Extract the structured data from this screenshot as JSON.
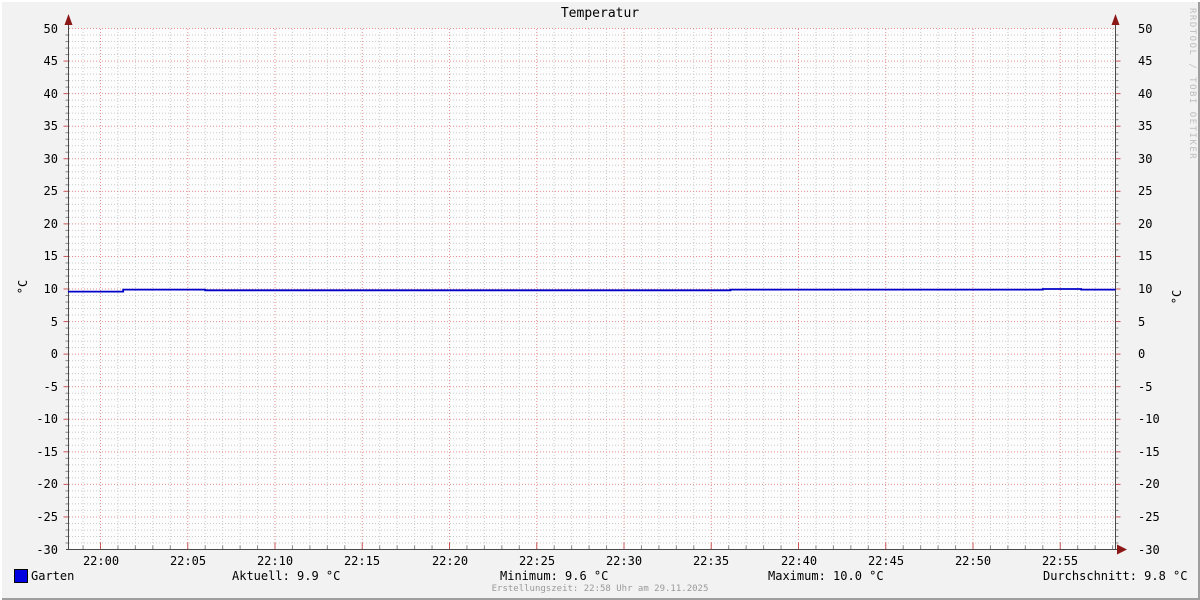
{
  "title": "Temperatur",
  "watermark": "RRDTOOL / TOBI OETIKER",
  "footer": "Erstellungszeit: 22:58 Uhr am 29.11.2025",
  "legend": {
    "series_label": "Garten",
    "aktuell": "Aktuell: 9.9 °C",
    "minimum": "Minimum: 9.6 °C",
    "maximum": "Maximum: 10.0 °C",
    "durchschnitt": "Durchschnitt: 9.8 °C"
  },
  "colors": {
    "background": "#f2f2f2",
    "canvas": "#fdfdfd",
    "grid_minor": "#cbcbcb",
    "grid_major": "#e59090",
    "axis": "#4a4a4a",
    "arrow": "#8b1717",
    "line": "#0000c8",
    "legend_swatch": "#0000e0",
    "tick_minor": "#888888",
    "tick_major": "#cc5555"
  },
  "chart_data": {
    "type": "line",
    "title": "Temperatur",
    "ylabel": "°C",
    "ylabel_right": "°C",
    "ylim": [
      -30,
      50
    ],
    "y_major_step": 5,
    "y_minor_step": 1,
    "grid": true,
    "legend_position": "bottom",
    "y_ticks": [
      "50",
      "45",
      "40",
      "35",
      "30",
      "25",
      "20",
      "15",
      "10",
      "5",
      "0",
      "-5",
      "-10",
      "-15",
      "-20",
      "-25",
      "-30"
    ],
    "x_ticks": [
      {
        "t": 0,
        "label": "22:00"
      },
      {
        "t": 5,
        "label": "22:05"
      },
      {
        "t": 10,
        "label": "22:10"
      },
      {
        "t": 15,
        "label": "22:15"
      },
      {
        "t": 20,
        "label": "22:20"
      },
      {
        "t": 25,
        "label": "22:25"
      },
      {
        "t": 30,
        "label": "22:30"
      },
      {
        "t": 35,
        "label": "22:35"
      },
      {
        "t": 40,
        "label": "22:40"
      },
      {
        "t": 45,
        "label": "22:45"
      },
      {
        "t": 50,
        "label": "22:50"
      },
      {
        "t": 55,
        "label": "22:55"
      }
    ],
    "x_range_minutes": [
      -1.87,
      58.17
    ],
    "series": [
      {
        "name": "Garten",
        "unit": "°C",
        "steps": [
          [
            -1.87,
            9.6
          ],
          [
            1.3,
            9.9
          ],
          [
            6,
            9.8
          ],
          [
            36.1,
            9.9
          ],
          [
            54,
            10.0
          ],
          [
            56.2,
            9.9
          ]
        ],
        "end_t": 58.17
      }
    ],
    "stats": {
      "aktuell": 9.9,
      "minimum": 9.6,
      "maximum": 10.0,
      "durchschnitt": 9.8
    }
  }
}
